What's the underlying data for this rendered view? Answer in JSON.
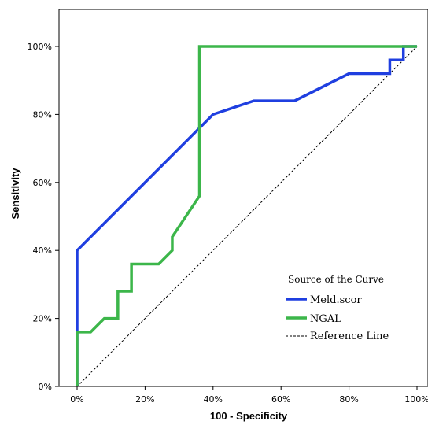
{
  "chart_data": {
    "type": "line",
    "xlabel": "100 - Specificity",
    "ylabel": "Sensitivity",
    "xlim": [
      0,
      100
    ],
    "ylim": [
      0,
      100
    ],
    "x_ticks": [
      "0%",
      "20%",
      "40%",
      "60%",
      "80%",
      "100%"
    ],
    "y_ticks": [
      "0%",
      "20%",
      "40%",
      "60%",
      "80%",
      "100%"
    ],
    "legend": {
      "title": "Source of the Curve",
      "placement": "bottom-right"
    },
    "series": [
      {
        "name": "Meld.scor",
        "color": "#1f3fe0",
        "points": [
          [
            0,
            0
          ],
          [
            0,
            16
          ],
          [
            0,
            40
          ],
          [
            40,
            80
          ],
          [
            52,
            84
          ],
          [
            64,
            84
          ],
          [
            80,
            92
          ],
          [
            92,
            92
          ],
          [
            92,
            96
          ],
          [
            96,
            96
          ],
          [
            96,
            100
          ],
          [
            100,
            100
          ]
        ]
      },
      {
        "name": "NGAL",
        "color": "#3cb64a",
        "points": [
          [
            0,
            0
          ],
          [
            0,
            16
          ],
          [
            4,
            16
          ],
          [
            8,
            20
          ],
          [
            12,
            20
          ],
          [
            12,
            28
          ],
          [
            16,
            28
          ],
          [
            16,
            36
          ],
          [
            24,
            36
          ],
          [
            28,
            40
          ],
          [
            28,
            44
          ],
          [
            36,
            56
          ],
          [
            36,
            100
          ],
          [
            100,
            100
          ]
        ]
      },
      {
        "name": "Reference Line",
        "color": "#000000",
        "dashed": true,
        "points": [
          [
            0,
            0
          ],
          [
            100,
            100
          ]
        ]
      }
    ]
  }
}
